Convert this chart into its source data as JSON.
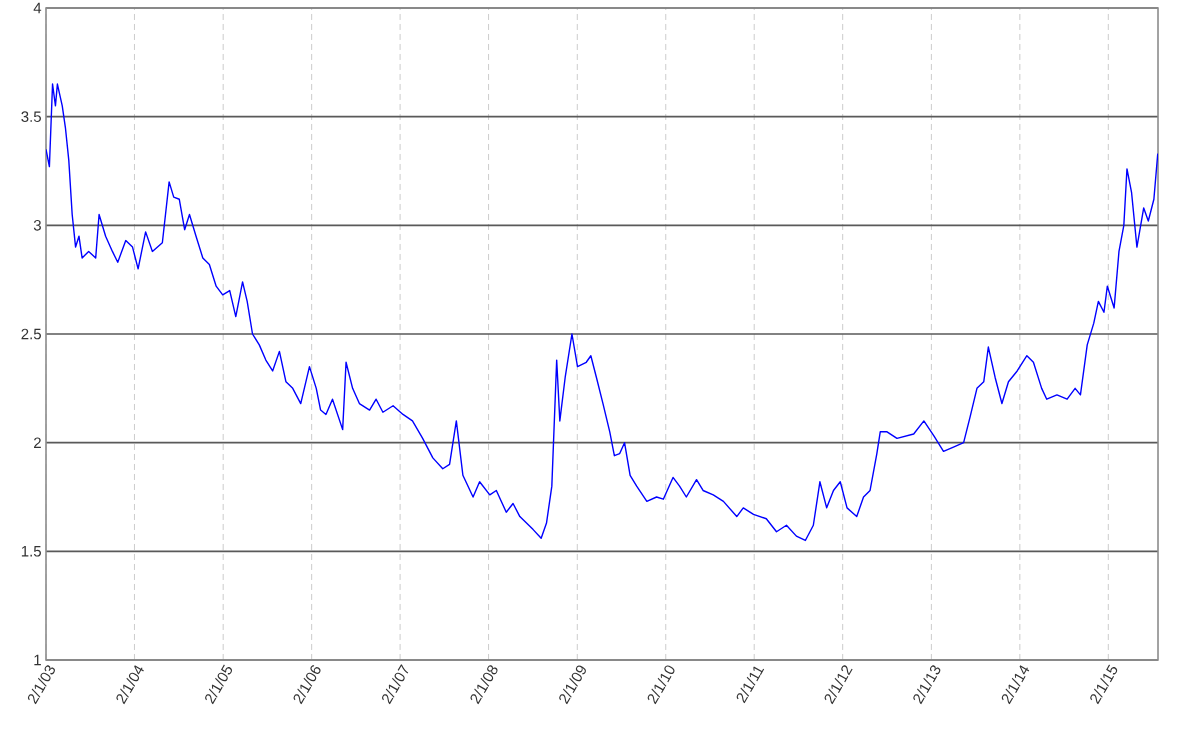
{
  "chart_data": {
    "type": "line",
    "color": "#0000ff",
    "grid": true,
    "xlim": [
      "2003-02-01",
      "2015-08-25"
    ],
    "ylim": [
      1,
      4
    ],
    "yticks": [
      1,
      1.5,
      2,
      2.5,
      3,
      3.5,
      4
    ],
    "xticks": [
      {
        "value": "2003-02-01",
        "label": "2/1/03"
      },
      {
        "value": "2004-02-01",
        "label": "2/1/04"
      },
      {
        "value": "2005-02-01",
        "label": "2/1/05"
      },
      {
        "value": "2006-02-01",
        "label": "2/1/06"
      },
      {
        "value": "2007-02-01",
        "label": "2/1/07"
      },
      {
        "value": "2008-02-01",
        "label": "2/1/08"
      },
      {
        "value": "2009-02-01",
        "label": "2/1/09"
      },
      {
        "value": "2010-02-01",
        "label": "2/1/10"
      },
      {
        "value": "2011-02-01",
        "label": "2/1/11"
      },
      {
        "value": "2012-02-01",
        "label": "2/1/12"
      },
      {
        "value": "2013-02-01",
        "label": "2/1/13"
      },
      {
        "value": "2014-02-01",
        "label": "2/1/14"
      },
      {
        "value": "2015-02-01",
        "label": "2/1/15"
      }
    ],
    "x": [
      "2003-02-01",
      "2003-02-15",
      "2003-02-28",
      "2003-03-12",
      "2003-03-20",
      "2003-04-09",
      "2003-04-22",
      "2003-05-06",
      "2003-05-20",
      "2003-06-03",
      "2003-06-17",
      "2003-06-30",
      "2003-07-27",
      "2003-08-25",
      "2003-09-08",
      "2003-10-05",
      "2003-11-02",
      "2003-11-24",
      "2003-12-27",
      "2004-01-24",
      "2004-02-16",
      "2004-03-18",
      "2004-04-15",
      "2004-05-26",
      "2004-06-23",
      "2004-07-12",
      "2004-08-04",
      "2004-08-26",
      "2004-09-15",
      "2004-10-12",
      "2004-11-09",
      "2004-12-06",
      "2005-01-03",
      "2005-01-30",
      "2005-02-28",
      "2005-03-25",
      "2005-04-22",
      "2005-05-11",
      "2005-06-02",
      "2005-06-30",
      "2005-07-27",
      "2005-08-24",
      "2005-09-21",
      "2005-10-18",
      "2005-11-15",
      "2005-12-18",
      "2006-01-23",
      "2006-02-20",
      "2006-03-10",
      "2006-04-01",
      "2006-04-28",
      "2006-06-09",
      "2006-06-23",
      "2006-07-20",
      "2006-08-17",
      "2006-09-28",
      "2006-10-25",
      "2006-11-22",
      "2007-01-03",
      "2007-02-13",
      "2007-03-24",
      "2007-05-05",
      "2007-06-16",
      "2007-07-27",
      "2007-08-24",
      "2007-09-21",
      "2007-10-18",
      "2007-11-29",
      "2007-12-26",
      "2008-02-06",
      "2008-03-04",
      "2008-04-14",
      "2008-05-12",
      "2008-06-09",
      "2008-08-03",
      "2008-09-05",
      "2008-09-27",
      "2008-10-19",
      "2008-11-08",
      "2008-11-21",
      "2008-12-13",
      "2009-01-10",
      "2009-02-02",
      "2009-03-10",
      "2009-03-29",
      "2009-04-21",
      "2009-05-18",
      "2009-06-15",
      "2009-07-04",
      "2009-07-26",
      "2009-08-15",
      "2009-09-07",
      "2009-10-04",
      "2009-11-15",
      "2009-12-25",
      "2010-01-22",
      "2010-03-03",
      "2010-03-30",
      "2010-04-27",
      "2010-06-08",
      "2010-07-05",
      "2010-08-16",
      "2010-09-27",
      "2010-11-21",
      "2010-12-18",
      "2011-01-29",
      "2011-03-23",
      "2011-05-04",
      "2011-06-14",
      "2011-07-25",
      "2011-08-31",
      "2011-10-03",
      "2011-10-30",
      "2011-11-27",
      "2011-12-25",
      "2012-01-22",
      "2012-02-19",
      "2012-03-30",
      "2012-04-27",
      "2012-05-24",
      "2012-06-21",
      "2012-07-05",
      "2012-08-02",
      "2012-09-12",
      "2012-11-20",
      "2013-01-01",
      "2013-02-12",
      "2013-03-23",
      "2013-05-03",
      "2013-06-14",
      "2013-07-11",
      "2013-08-08",
      "2013-09-05",
      "2013-09-24",
      "2013-10-22",
      "2013-11-19",
      "2013-12-16",
      "2014-01-21",
      "2014-03-02",
      "2014-03-29",
      "2014-05-02",
      "2014-05-23",
      "2014-07-04",
      "2014-08-15",
      "2014-09-17",
      "2014-10-09",
      "2014-11-06",
      "2014-12-03",
      "2014-12-22",
      "2015-01-14",
      "2015-01-28",
      "2015-02-25",
      "2015-03-17",
      "2015-04-06",
      "2015-04-19",
      "2015-05-08",
      "2015-05-30",
      "2015-06-27",
      "2015-07-16",
      "2015-08-08",
      "2015-08-24"
    ],
    "values": [
      3.35,
      3.27,
      3.65,
      3.55,
      3.65,
      3.55,
      3.45,
      3.3,
      3.05,
      2.9,
      2.95,
      2.85,
      2.88,
      2.85,
      3.05,
      2.95,
      2.88,
      2.83,
      2.93,
      2.9,
      2.8,
      2.97,
      2.88,
      2.92,
      3.2,
      3.13,
      3.12,
      2.98,
      3.05,
      2.95,
      2.85,
      2.82,
      2.72,
      2.68,
      2.7,
      2.58,
      2.74,
      2.65,
      2.5,
      2.45,
      2.38,
      2.33,
      2.42,
      2.28,
      2.25,
      2.18,
      2.35,
      2.25,
      2.15,
      2.13,
      2.2,
      2.06,
      2.37,
      2.25,
      2.18,
      2.15,
      2.2,
      2.14,
      2.17,
      2.13,
      2.1,
      2.02,
      1.93,
      1.88,
      1.9,
      2.1,
      1.85,
      1.75,
      1.82,
      1.76,
      1.78,
      1.68,
      1.72,
      1.66,
      1.6,
      1.56,
      1.63,
      1.8,
      2.38,
      2.1,
      2.3,
      2.5,
      2.35,
      2.37,
      2.4,
      2.3,
      2.18,
      2.05,
      1.94,
      1.95,
      2.0,
      1.85,
      1.8,
      1.73,
      1.75,
      1.74,
      1.84,
      1.8,
      1.75,
      1.83,
      1.78,
      1.76,
      1.73,
      1.66,
      1.7,
      1.67,
      1.65,
      1.59,
      1.62,
      1.57,
      1.55,
      1.62,
      1.82,
      1.7,
      1.78,
      1.82,
      1.7,
      1.66,
      1.75,
      1.78,
      1.95,
      2.05,
      2.05,
      2.02,
      2.04,
      2.1,
      2.03,
      1.96,
      1.98,
      2.0,
      2.12,
      2.25,
      2.28,
      2.44,
      2.3,
      2.18,
      2.28,
      2.33,
      2.4,
      2.37,
      2.25,
      2.2,
      2.22,
      2.2,
      2.25,
      2.22,
      2.45,
      2.55,
      2.65,
      2.6,
      2.72,
      2.62,
      2.88,
      3.0,
      3.26,
      3.15,
      2.9,
      3.08,
      3.02,
      3.12,
      3.33
    ]
  }
}
